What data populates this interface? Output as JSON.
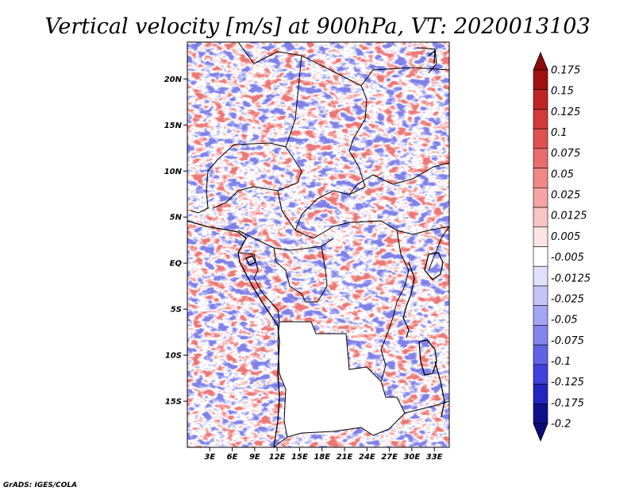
{
  "chart_data": {
    "type": "heatmap",
    "title": "Vertical velocity [m/s] at 900hPa, VT: 2020013103",
    "variable": "Vertical velocity",
    "units": "m/s",
    "level": "900hPa",
    "valid_time": "2020013103",
    "x_axis": {
      "range": [
        0,
        35
      ],
      "ticks": [
        3,
        6,
        9,
        12,
        15,
        18,
        21,
        24,
        27,
        30,
        33
      ],
      "tick_labels": [
        "3E",
        "6E",
        "9E",
        "12E",
        "15E",
        "18E",
        "21E",
        "24E",
        "27E",
        "30E",
        "33E"
      ]
    },
    "y_axis": {
      "range": [
        -20,
        24
      ],
      "ticks": [
        20,
        15,
        10,
        5,
        0,
        -5,
        -10,
        -15
      ],
      "tick_labels": [
        "20N",
        "15N",
        "10N",
        "5N",
        "EQ",
        "5S",
        "10S",
        "15S"
      ]
    },
    "colorbar": {
      "levels": [
        "0.175",
        "0.15",
        "0.125",
        "0.1",
        "0.075",
        "0.05",
        "0.025",
        "0.0125",
        "0.005",
        "-0.005",
        "-0.0125",
        "-0.025",
        "-0.05",
        "-0.075",
        "-0.1",
        "-0.125",
        "-0.175",
        "-0.2"
      ],
      "colors": [
        "#a01010",
        "#c02424",
        "#d43838",
        "#e05050",
        "#ea6c6c",
        "#f08888",
        "#f4a4a4",
        "#f8c4c4",
        "#fce4e4",
        "#ffffff",
        "#e0e0fc",
        "#c4c4f8",
        "#a4a4f4",
        "#8484ee",
        "#6262e6",
        "#4040dc",
        "#2424c0",
        "#10108c"
      ],
      "top_arrow_color": "#8c0c0c",
      "bottom_arrow_color": "#0c0c78"
    },
    "grid": false,
    "colorbar_position": "right"
  },
  "credit": "GrADS: IGES/COLA",
  "field_colors": {
    "positive": "#e86060",
    "negative": "#6a6ae4",
    "blank_region": "#ffffff"
  }
}
